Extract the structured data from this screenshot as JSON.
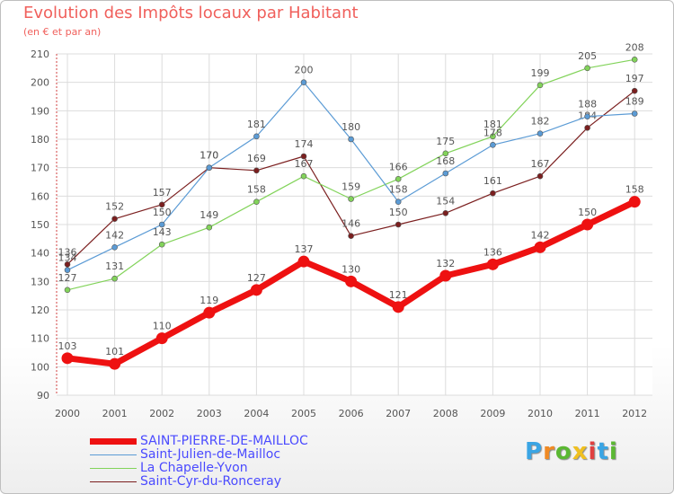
{
  "header": {
    "title": "Evolution des Impôts locaux par Habitant",
    "subtitle": "(en € et par an)"
  },
  "logo": {
    "text": "Proxiti",
    "colors": [
      "#3aa5e4",
      "#f08a24",
      "#5bb833",
      "#f0c020",
      "#e04040",
      "#3aa5e4",
      "#5bb833"
    ]
  },
  "chart_data": {
    "type": "line",
    "title": "Evolution des Impôts locaux par Habitant",
    "subtitle": "(en € et par an)",
    "xlabel": "",
    "ylabel": "",
    "ylim": [
      90,
      210
    ],
    "yticks": [
      90,
      100,
      110,
      120,
      130,
      140,
      150,
      160,
      170,
      180,
      190,
      200,
      210
    ],
    "grid": true,
    "legend_position": "bottom-left",
    "categories": [
      "2000",
      "2001",
      "2002",
      "2003",
      "2004",
      "2005",
      "2006",
      "2007",
      "2008",
      "2009",
      "2010",
      "2011",
      "2012"
    ],
    "series": [
      {
        "name": "Saint-Cyr-du-Ronceray",
        "color": "#7b1f1f",
        "values": [
          136,
          152,
          157,
          170,
          169,
          174,
          146,
          150,
          154,
          161,
          167,
          184,
          197
        ],
        "labels": [
          "136",
          "152",
          "157",
          "170",
          "169",
          "174",
          "146",
          "150",
          "154",
          "161",
          "167",
          "184",
          "197"
        ]
      },
      {
        "name": "La Chapelle-Yvon",
        "color": "#82d35a",
        "values": [
          127,
          131,
          143,
          149,
          158,
          167,
          159,
          166,
          175,
          181,
          199,
          205,
          208
        ],
        "labels": [
          "127",
          "131",
          "143",
          "149",
          "158",
          "167",
          "159",
          "166",
          "175",
          "181",
          "199",
          "205",
          "208"
        ]
      },
      {
        "name": "Saint-Julien-de-Mailloc",
        "color": "#5b9bd5",
        "values": [
          134,
          142,
          150,
          170,
          181,
          200,
          180,
          158,
          168,
          178,
          182,
          188,
          189
        ],
        "labels": [
          "134",
          "142",
          "150",
          "170",
          "181",
          "200",
          "180",
          "158",
          "168",
          "178",
          "182",
          "188",
          "189"
        ]
      },
      {
        "name": "SAINT-PIERRE-DE-MAILLOC",
        "color": "#ee1111",
        "values": [
          103,
          101,
          110,
          119,
          127,
          137,
          130,
          121,
          132,
          136,
          142,
          150,
          158
        ],
        "labels": [
          "103",
          "101",
          "110",
          "119",
          "127",
          "137",
          "130",
          "121",
          "132",
          "136",
          "142",
          "150",
          "158"
        ]
      }
    ],
    "legend": [
      "SAINT-PIERRE-DE-MAILLOC",
      "Saint-Julien-de-Mailloc",
      "La Chapelle-Yvon",
      "Saint-Cyr-du-Ronceray"
    ]
  }
}
